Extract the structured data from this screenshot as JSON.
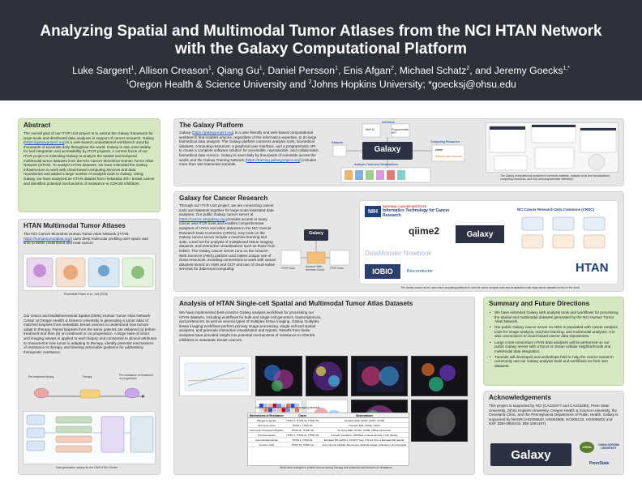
{
  "header": {
    "title_line1": "Analyzing Spatial and Multimodal Tumor Atlases from the NCI HTAN Network",
    "title_line2": "with the Galaxy Computational Platform",
    "authors": [
      {
        "name": "Luke Sargent",
        "sup": "1"
      },
      {
        "name": "Allison Creason",
        "sup": "1"
      },
      {
        "name": "Qiang Gu",
        "sup": "1"
      },
      {
        "name": "Daniel Persson",
        "sup": "1"
      },
      {
        "name": "Enis Afgan",
        "sup": "2"
      },
      {
        "name": "Michael Schatz",
        "sup": "2"
      },
      {
        "name": "and Jeremy Goecks",
        "sup": "1,*"
      }
    ],
    "affiliation_1_sup": "1",
    "affiliation_1": "Oregon Health & Science University and ",
    "affiliation_2_sup": "2",
    "affiliation_2": "Johns Hopkins University; *goecksj@ohsu.edu"
  },
  "abstract": {
    "heading": "Abstract",
    "text_before_link": "The overall goal of our ITCR U24 project is to extend the Galaxy framework for large-scale and distributed data analyses in support of cancer research. Galaxy (",
    "link": "https://galaxyproject.org",
    "text_after_link": ") is a web-based computational workbench used by thousands of scientists daily throughout the world. Galaxy is also used widely for tool integration and accessibility by ITCR projects. A current focus of our ITCR project is extending Galaxy to analyze the spatial and temporal multimodal tumor datasets from the NCI Cancer Moonshot Human Tumor Atlas Network (HTAN). To analyze HTAN datasets, we have extended the Galaxy infrastructure to work with cloud-based computing services and data repositories and added a large number of analysis tools to Galaxy. Using Galaxy, we have analyzed an HTAN dataset from metastatic ER+ breast cancer and identified potential mechanisms of resistance to CDK4/6 inhibitors."
  },
  "htan_atlases": {
    "heading": "HTAN Multimodal Tumor Atlases",
    "text_before_link": "The NCI Cancer Moonshot Human Tumor Atlas Network (HTAN, ",
    "link": "https://humantumoratlas.org/",
    "text_after_link": ") uses deep molecular profiling over space and time to better understand and treat cancer.",
    "figure_caption": "Rozenblatt-Rosen et al., Cell (2020)",
    "omics_text": "Our Omics and Multidimensional Spatial (OMS) Human Tumor Atlas Network Center at Oregon Health & Science University is generating a tumor atlas of matched biopsies from metastatic breast cancers to understand how tumors adapt to therapy. Paired biopsies from the same patients are obtained (a) before treatment and then (b) on treatment or on progression. A large suite of omics and imaging assays is applied to each biopsy and connected to clinical attributes to characterize how tumor is adapting to therapy, identify potential mechanisms of resistance to therapy, and develop actionable guidance for addressing therapeutic resistance.",
    "timeline_labels": [
      "Pre-treatment biopsy",
      "Therapy",
      "Pre-resistance on treatment or progression"
    ],
    "workflow_caption": "Data generation assays for the OMS HTAN Center"
  },
  "galaxy_platform": {
    "heading": "The Galaxy Platform",
    "text_before_link1": "Galaxy (",
    "link1": "https://galaxyproject.org",
    "text_middle": ") is a user-friendly and web-based computational workbench that enables anyone, regardless of the informatics expertise, to do large biomedical data analysis. The Galaxy platform connects analysis tools, biomedical datasets, computing resources, a graphical user interface, and a programmatic API to create a complete software solution for accessible, reproducible, and collaborative biomedical data science. Galaxy is used daily by thousands of scientists across the world, and the Galaxy Training Network (",
    "link2": "https://training.galaxyproject.org/",
    "text_after_link2": ") includes more than 150 interactive tutorials.",
    "diagram_labels": {
      "interfaces": "Interfaces",
      "web_ui": "Web UI",
      "api": "Programmatic API",
      "datasets": "Datasets",
      "galaxy": "Galaxy",
      "computing": "Computing Resources",
      "tools": "Analysis Tools and Visualizations",
      "slurm": "slurm",
      "aws": "amazon web services"
    },
    "diagram_caption": "The Galaxy computational workbench connects datasets, analysis tools and visualizations, computing resources, and GUI and programmatic interfaces."
  },
  "cancer_research": {
    "heading": "Galaxy for Cancer Research",
    "text_before_link": "Through our ITCR U24 project, we are connecting cancer tools and datasets together for large-scale federated data analyses. Our public Galaxy cancer server at ",
    "link": "https://cancer.usegalaxy.org",
    "text_after_link": " provides access to many cancer and ITCR tools and enables comprehensive analyses of HTAN and other datasets in the NCI Cancer Research Data Commons (CRDC). Key tools on the Galaxy cancer server include a machine learning tool suite, a tool set for analysis of multiplexed tissue imaging datasets, and interactive visualizations such as those from IOBIO. The Galaxy cancer server runs on the Amazon Web Services (AWS) platform and makes unique use of cloud resources, including connections to work with cancer datasets stored on AWS and GCP and use of cloud-native services for data-local computing.",
    "logos": {
      "nci": "NATIONAL CANCER INSTITUTE",
      "itcr": "Informatics Technology for Cancer Research",
      "crdc": "NCI Cancer Research Data Commons (CRDC)",
      "qiime": "qiime2",
      "galaxy": "Galaxy",
      "datamonster": "DataMonster Notebook",
      "iobio": "IOBIO",
      "bioconductor": "Bioconductor",
      "htan": "HTAN"
    },
    "mini_labels": [
      "ITCR Tools",
      "Amazon Web Services Cloud",
      "ITCR Tools"
    ],
    "caption": "The Galaxy cancer server uses cloud computing platforms to connect cancer analysis tools and visualizations with large cancer datasets stored on the cloud."
  },
  "analysis": {
    "heading": "Analysis of HTAN Single-cell Spatial and Multimodal Tumor Atlas Datasets",
    "text": "We have implemented best-practice Galaxy analysis workflows for processing our HTAN datasets, including workflows for bulk and single-cell genomics, transcriptomics, and proteomics as well as several types of multiplex tissue imaging. Galaxy multiplex tissue imaging workflows perform primary image processing, single-cell and spatial analyses, and generate interactive visualization and reports. Results from these analyses have provided insight into potential mechanisms of resistance to CDK4/6 inhibitors in metastatic breast cancers.",
    "figure_caption": "Galaxy analyses of multiplex tissue imaging datasets",
    "table": {
      "headers": [
        "Mechanisms of Resistance",
        "Cases",
        "Observations"
      ],
      "rows": [
        [
          "Mitogenic signals",
          "HTAN 1, HTAN 3L, HTAN 4S",
          "Increase EGF, CDK2, CDK6, CCND"
        ],
        [
          "Cell Cycle Gene",
          "HTAN 1, HTAN 3L",
          "Increase E2F, CCNE, CDK4"
        ],
        [
          "Cell Cycle Checkpoint Bypass",
          "HTAN 3L, HTAN 3S",
          "Increase MET, PCNA, CCNB, CDK4 expression"
        ],
        [
          "Immunoreactive",
          "HTAN 1, HTAN 3L, HTAN 3S",
          "Increase interferon, JAK/Stat, immune density, T cell density"
        ],
        [
          "Immunosuppressive",
          "HTAN 1, HTAN 3L",
          "Elevated PD-L1/PD-1, FOXP3 Treg, CTLA4, PD-L1 Elevated M2 density"
        ],
        [
          "Immune Cold",
          "HTAN 3S, HTAN 1A",
          "Low immune infiltrate Monocytes, Minimal antigen reduction in immunocells"
        ]
      ]
    },
    "table_caption": "Multi-omic changes in patient tumors during therapy and potential mechanisms of resistance."
  },
  "summary": {
    "heading": "Summary and Future Directions",
    "items": [
      "We have extended Galaxy with analysis tools and workflows for processing the spatial and multimodal datasets generated by the NCI Human Tumor Atlas Network.",
      "Our public Galaxy cancer server on AWS is populated with cancer analysis tools for image analysis, machine learning, and multimodal analyses. It is also connected it to cloud-based cancer data repositories.",
      "Large cross-consortium HTAN data analyses will be performed on our public Galaxy server with a focus on tissue cellular neighborhoods and multimodal data integration.",
      "Tutorials will developed and workshops held to help the cancer research community use our Galaxy analysis tools and workflows on their own datasets."
    ]
  },
  "acknowledgements": {
    "heading": "Acknowledgements",
    "text": "This project is supported by NCI (CA231877 and CA233280), Penn State University, Johns Hopkins University, Oregon Health & Science University, the Cleveland Clinic, and the Pennsylvania Department of Public Health. Galaxy is supported by NHGRI (HG006620, HG004909, HG005133, HG006620) and NSF (DBI-0850103, DBI-1661497).",
    "logos": {
      "galaxy": "Galaxy",
      "ohsu": "OHSU",
      "jhu": "JOHNS HOPKINS UNIVERSITY",
      "psu": "PennState"
    }
  }
}
